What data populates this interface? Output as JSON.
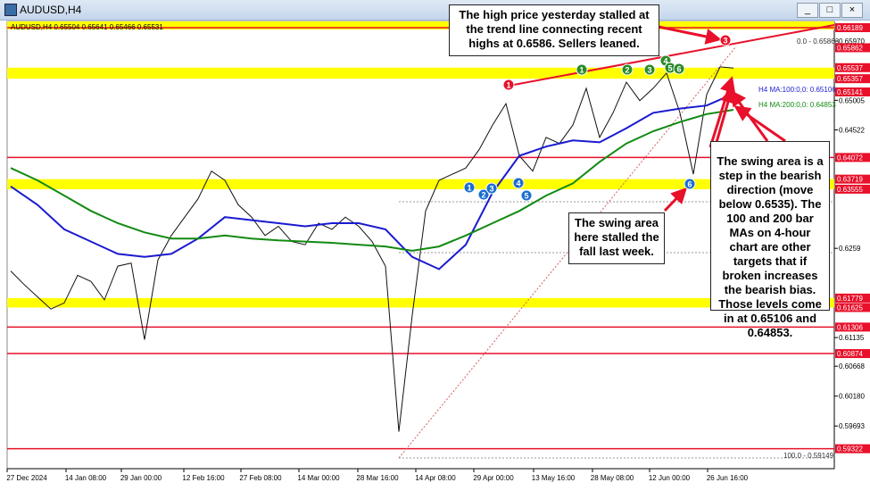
{
  "window": {
    "title": "AUDUSD,H4",
    "buttons": [
      "_",
      "□",
      "×"
    ]
  },
  "chart_data": {
    "type": "candlestick-screenshot",
    "header": "AUDUSD,H4  0.65504 0.65641 0.65466 0.65531",
    "ylim": [
      0.59215,
      0.66189
    ],
    "yticks": [
      {
        "value": 0.6597,
        "label": "0.65970"
      },
      0.65005,
      0.64522,
      0.6259,
      0.61135,
      0.60668,
      {
        "value": 0.6018,
        "label": "0.60180"
      },
      0.59693
    ],
    "marked_levels": [
      0.66189,
      0.65862,
      0.65537,
      0.65357,
      0.65141,
      0.64072,
      0.63719,
      0.63555,
      0.61779,
      0.61625,
      0.61306,
      0.60874,
      0.59322
    ],
    "marked_color": "#e8102a",
    "zone_color": "#ffff00",
    "x_labels": [
      "27 Dec 2024",
      "14 Jan 08:00",
      "29 Jan 00:00",
      "12 Feb 16:00",
      "27 Feb 08:00",
      "14 Mar 00:00",
      "28 Mar 16:00",
      "14 Apr 08:00",
      "29 Apr 00:00",
      "13 May 16:00",
      "28 May 08:00",
      "12 Jun 00:00",
      "26 Jun 16:00"
    ],
    "series": [
      {
        "name": "price",
        "color": "#111111",
        "values": [
          0.6222,
          0.62,
          0.618,
          0.616,
          0.617,
          0.6215,
          0.6205,
          0.6175,
          0.623,
          0.6235,
          0.611,
          0.624,
          0.628,
          0.631,
          0.634,
          0.6385,
          0.637,
          0.633,
          0.631,
          0.628,
          0.6295,
          0.627,
          0.6265,
          0.63,
          0.629,
          0.631,
          0.6295,
          0.627,
          0.623,
          0.596,
          0.615,
          0.632,
          0.637,
          0.638,
          0.639,
          0.642,
          0.646,
          0.6495,
          0.641,
          0.6385,
          0.644,
          0.643,
          0.646,
          0.652,
          0.644,
          0.648,
          0.653,
          0.65,
          0.652,
          0.6545,
          0.648,
          0.638,
          0.651,
          0.6555,
          0.6553
        ]
      },
      {
        "name": "H4 MA:100:0,0: 0.65106",
        "color": "#1a1ad0",
        "values": [
          0.636,
          0.633,
          0.629,
          0.627,
          0.625,
          0.6245,
          0.625,
          0.6275,
          0.631,
          0.6305,
          0.63,
          0.6295,
          0.63,
          0.63,
          0.629,
          0.6245,
          0.6225,
          0.6265,
          0.635,
          0.641,
          0.6425,
          0.6435,
          0.6432,
          0.6455,
          0.648,
          0.6487,
          0.6492,
          0.6511
        ]
      },
      {
        "name": "H4 MA:200:0,0: 0.64853",
        "color": "#128a12",
        "values": [
          0.639,
          0.637,
          0.6345,
          0.632,
          0.63,
          0.6285,
          0.6275,
          0.6275,
          0.628,
          0.6275,
          0.6272,
          0.627,
          0.6268,
          0.6265,
          0.6262,
          0.6255,
          0.6262,
          0.628,
          0.63,
          0.632,
          0.6345,
          0.6365,
          0.64,
          0.643,
          0.645,
          0.6465,
          0.6478,
          0.6485
        ]
      }
    ],
    "fib_labels": [
      "0.0 - 0.65863",
      "100.0 - 0.59149"
    ],
    "markers": [
      {
        "label": "1",
        "color": "#e8102a"
      },
      {
        "label": "1",
        "color": "#2a8a2a"
      },
      {
        "label": "2",
        "color": "#2a8a2a"
      },
      {
        "label": "3",
        "color": "#2a8a2a"
      },
      {
        "label": "4",
        "color": "#2a8a2a"
      },
      {
        "label": "5",
        "color": "#2a8a2a"
      },
      {
        "label": "6",
        "color": "#2a8a2a"
      },
      {
        "label": "3",
        "color": "#e8102a"
      },
      {
        "label": "1",
        "color": "#1a6ed0"
      },
      {
        "label": "2",
        "color": "#1a6ed0"
      },
      {
        "label": "3",
        "color": "#1a6ed0"
      },
      {
        "label": "4",
        "color": "#1a6ed0"
      },
      {
        "label": "5",
        "color": "#1a6ed0"
      },
      {
        "label": "6",
        "color": "#1a6ed0"
      }
    ],
    "annotations": [
      "The high price yesterday stalled at the trend line connecting recent highs at 0.6586.  Sellers leaned.",
      "The swing area here stalled the fall last week.",
      "The swing area is a step in the bearish direction (move below 0.6535). The 100 and 200 bar MAs on 4-hour chart are other targets that if broken increases the bearish bias. Those levels come in at 0.65106 and 0.64853."
    ]
  }
}
